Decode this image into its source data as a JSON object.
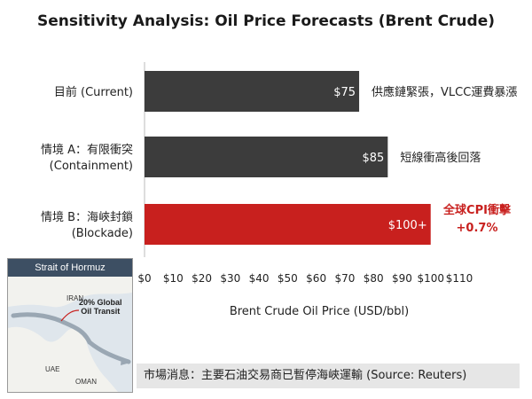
{
  "chart_data": {
    "type": "bar",
    "orientation": "horizontal",
    "title": "Sensitivity Analysis: Oil Price Forecasts (Brent Crude)",
    "xlabel": "Brent Crude Oil Price (USD/bbl)",
    "ylabel": "",
    "xlim": [
      0,
      110
    ],
    "categories": [
      [
        "目前 (Current)"
      ],
      [
        "情境 A：有限衝突",
        "(Containment)"
      ],
      [
        "情境 B：海峽封鎖",
        "(Blockade)"
      ]
    ],
    "values": [
      75,
      85,
      100
    ],
    "bar_labels": [
      "$75",
      "$85",
      "$100+"
    ],
    "annotations": [
      [
        "供應鏈緊張，VLCC運費暴漲"
      ],
      [
        "短線衝高後回落"
      ],
      [
        "全球CPI衝擊",
        "+0.7%"
      ]
    ],
    "bar_colors": [
      "#3c3c3c",
      "#3c3c3c",
      "#c8201e"
    ],
    "annotation_colors": [
      "#222222",
      "#222222",
      "#c8201e"
    ],
    "ticks": [
      "$0",
      "$10",
      "$20",
      "$30",
      "$40",
      "$50",
      "$60",
      "$70",
      "$80",
      "$90",
      "$100",
      "$110"
    ],
    "grid": false,
    "legend": "none"
  },
  "inset": {
    "title": "Strait of Hormuz",
    "callout": [
      "20% Global",
      "Oil Transit"
    ],
    "regions": [
      "IRAN",
      "UAE",
      "OMAN"
    ]
  },
  "footer": {
    "text": "市場消息：主要石油交易商已暫停海峽運輸 (Source: Reuters)"
  }
}
